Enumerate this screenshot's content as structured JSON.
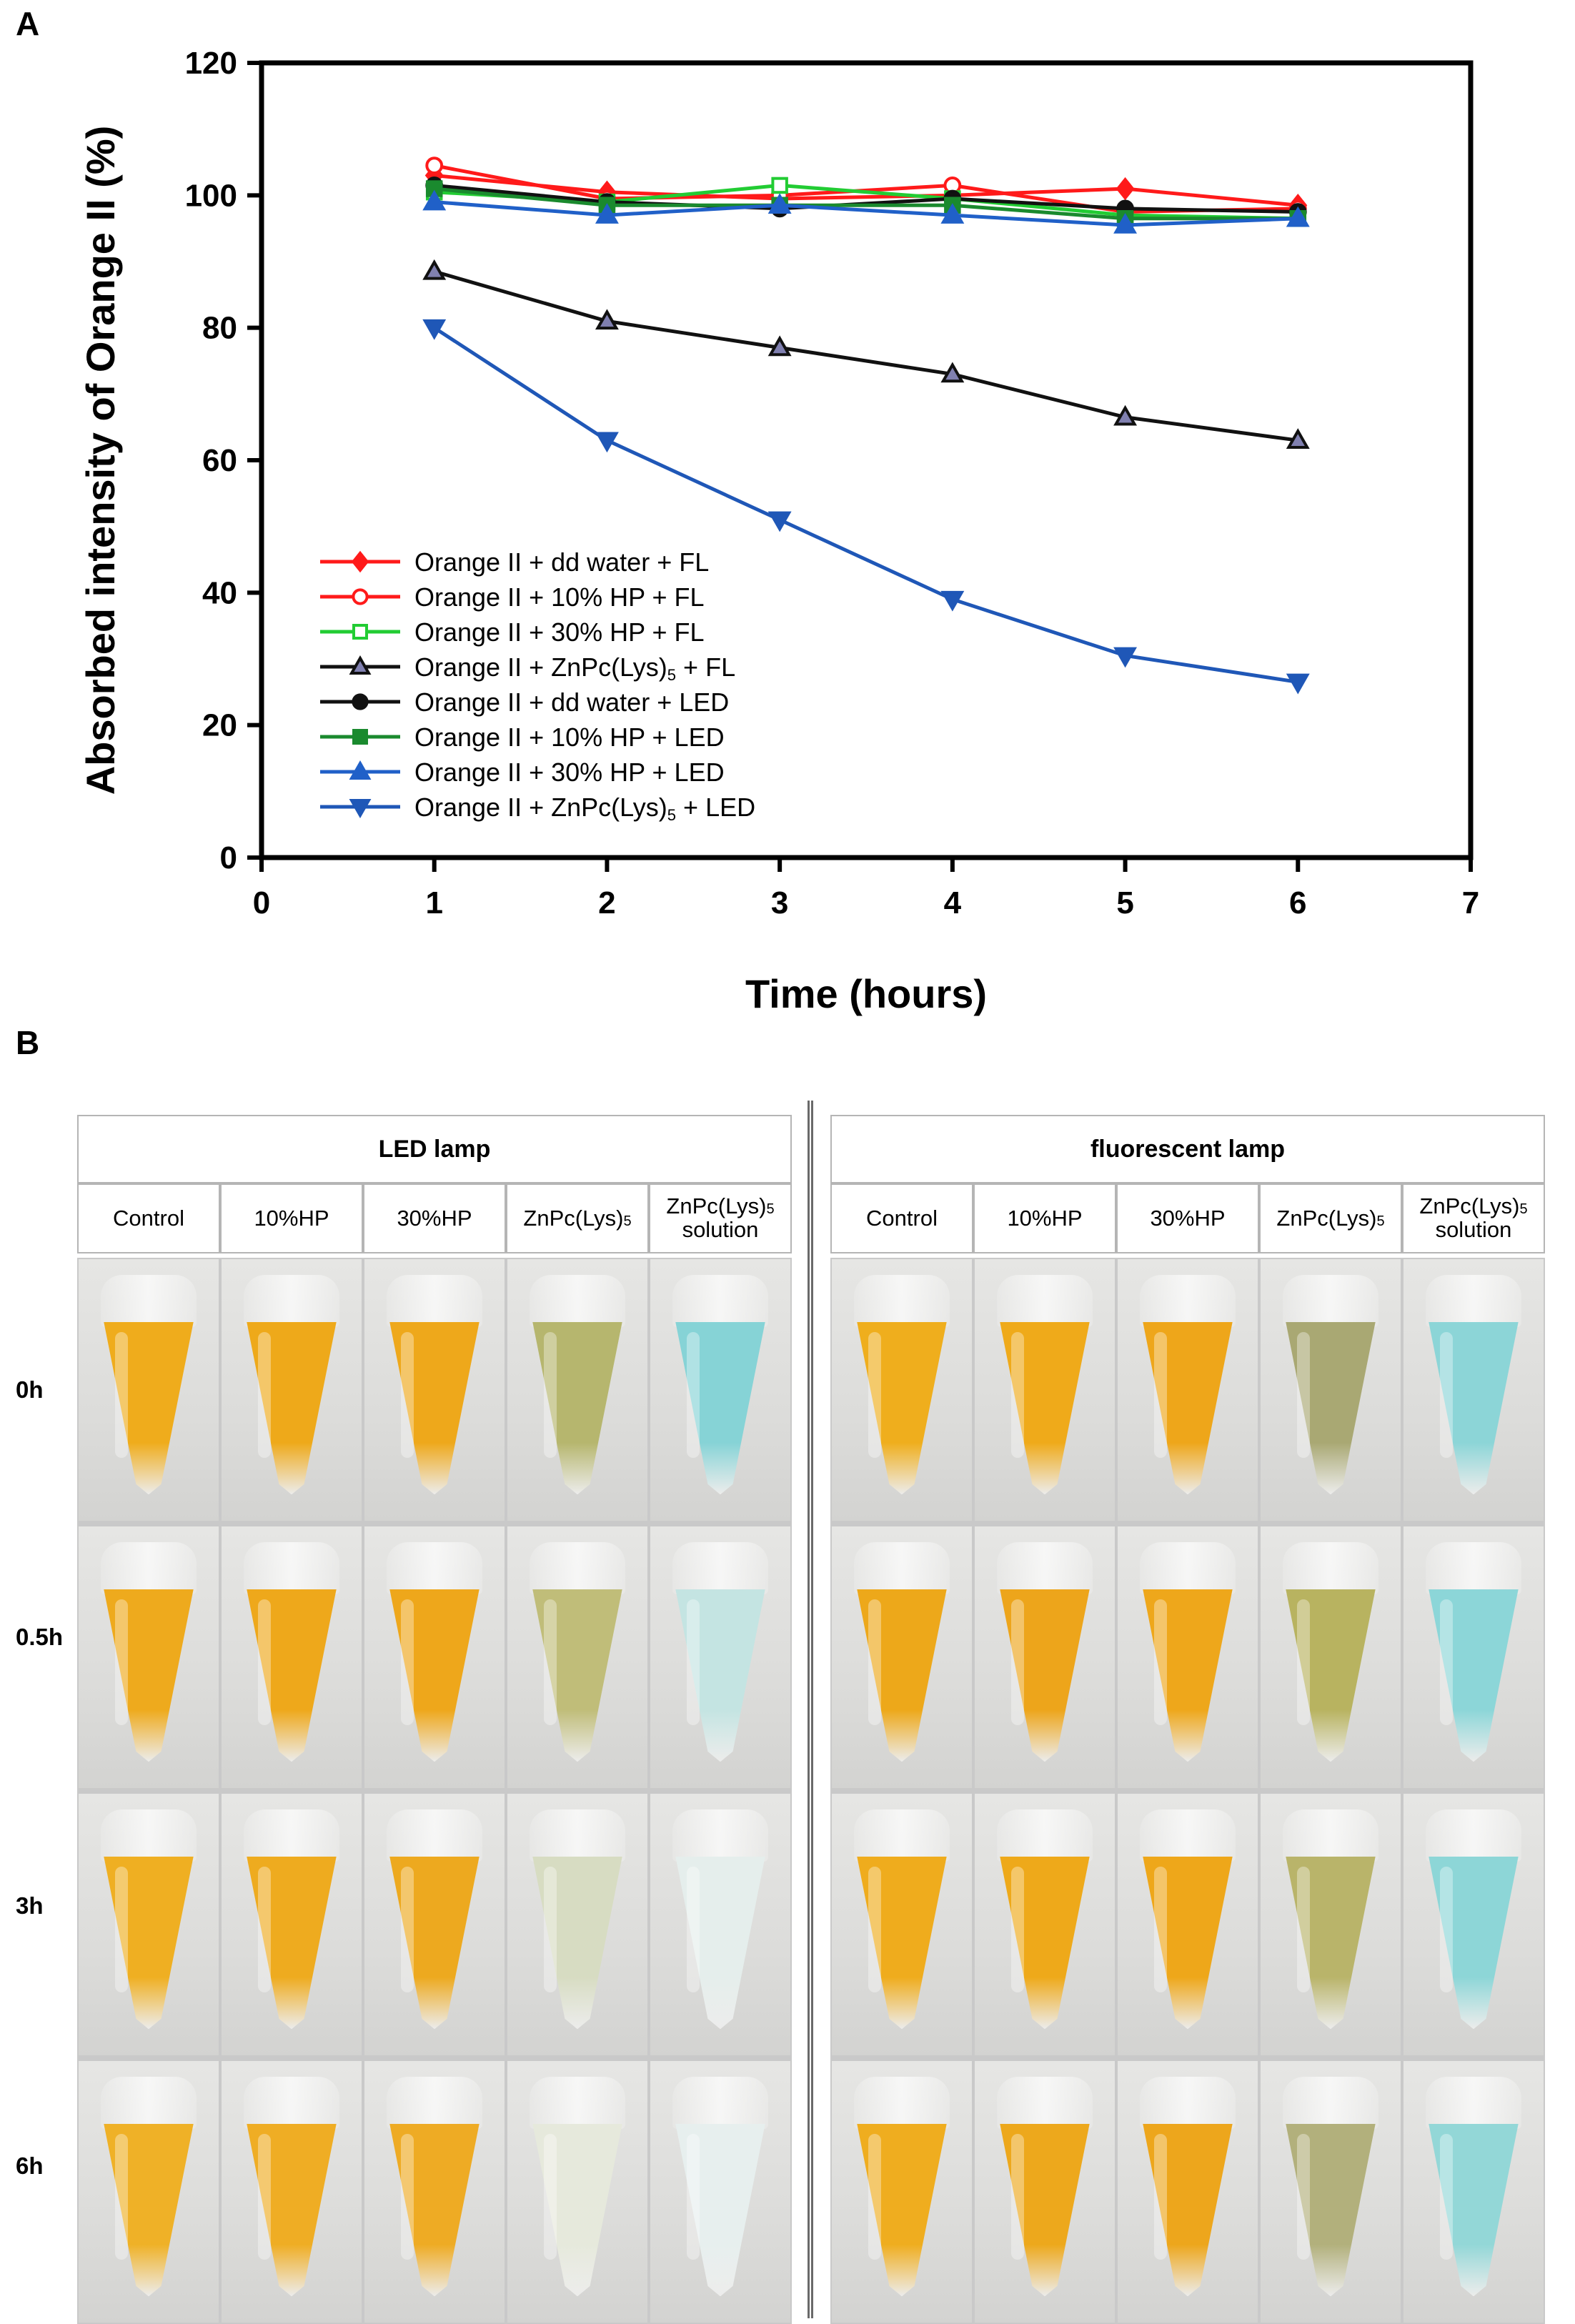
{
  "panel_a_label": "A",
  "panel_b_label": "B",
  "colors": {
    "red": "#ff1a1a",
    "green": "#22cc33",
    "black": "#111111",
    "dark_green": "#1a8a2e",
    "blue": "#2060c8",
    "navy_triangle": "#1f57b7",
    "triangle_fill": "#8080b0"
  },
  "chart_data": {
    "type": "line",
    "xlabel": "Time (hours)",
    "ylabel": "Absorbed intensity of Orange II (%)",
    "xlim": [
      0,
      7
    ],
    "ylim": [
      0,
      120
    ],
    "xticks": [
      0,
      1,
      2,
      3,
      4,
      5,
      6,
      7
    ],
    "yticks": [
      0,
      20,
      40,
      60,
      80,
      100,
      120
    ],
    "legend_position": "bottom-left",
    "x": [
      1,
      2,
      3,
      4,
      5,
      6
    ],
    "series": [
      {
        "name": "Orange II + dd water + FL",
        "color": "#ff1a1a",
        "marker": "diamond",
        "filled": true,
        "values": [
          103,
          100.5,
          99.5,
          100,
          101,
          98.5
        ]
      },
      {
        "name": "Orange II + 10% HP + FL",
        "color": "#ff1a1a",
        "marker": "circle",
        "filled": false,
        "values": [
          104.5,
          99.5,
          100,
          101.5,
          97.5,
          98
        ]
      },
      {
        "name": "Orange II + 30% HP + FL",
        "color": "#22cc33",
        "marker": "square",
        "filled": false,
        "values": [
          100.5,
          99,
          101.5,
          99.5,
          97,
          96.5
        ]
      },
      {
        "name": "Orange II + ZnPc(Lys)5 + FL",
        "color": "#111111",
        "marker": "triangle-up",
        "filled": true,
        "fill": "#8080b0",
        "values": [
          88.5,
          81,
          77,
          73,
          66.5,
          63
        ]
      },
      {
        "name": "Orange II + dd water + LED",
        "color": "#111111",
        "marker": "circle",
        "filled": true,
        "values": [
          101.5,
          99,
          98,
          99.5,
          98,
          97.5
        ]
      },
      {
        "name": "Orange II + 10% HP + LED",
        "color": "#1a8a2e",
        "marker": "square",
        "filled": true,
        "values": [
          101,
          98.5,
          98.5,
          98.5,
          96.5,
          96.5
        ]
      },
      {
        "name": "Orange II + 30% HP + LED",
        "color": "#2060c8",
        "marker": "triangle-up",
        "filled": true,
        "values": [
          99,
          97,
          98.5,
          97,
          95.5,
          96.5
        ]
      },
      {
        "name": "Orange II + ZnPc(Lys)5 + LED",
        "color": "#1f57b7",
        "marker": "triangle-down",
        "filled": true,
        "values": [
          80,
          63,
          51,
          39,
          30.5,
          26.5
        ]
      }
    ],
    "legend_parts": [
      [
        "Orange II + dd water + FL",
        ""
      ],
      [
        "Orange II + 10% HP + FL",
        ""
      ],
      [
        "Orange II + 30% HP + FL",
        ""
      ],
      [
        "Orange II + ZnPc(Lys)",
        "5",
        " + FL"
      ],
      [
        "Orange II + dd water + LED",
        ""
      ],
      [
        "Orange II + 10% HP + LED",
        ""
      ],
      [
        "Orange II + 30% HP + LED",
        ""
      ],
      [
        "Orange II + ZnPc(Lys)",
        "5",
        " + LED"
      ]
    ]
  },
  "panel_b": {
    "groups": [
      {
        "title": "LED lamp"
      },
      {
        "title": "fluorescent lamp"
      }
    ],
    "columns": [
      {
        "main": "Control",
        "sub": "",
        "second": ""
      },
      {
        "main": "10%HP",
        "sub": "",
        "second": ""
      },
      {
        "main": "30%HP",
        "sub": "",
        "second": ""
      },
      {
        "main": "ZnPc(Lys)",
        "sub": "5",
        "second": ""
      },
      {
        "main": "ZnPc(Lys)",
        "sub": "5",
        "second": "solution"
      }
    ],
    "rows": [
      "0h",
      "0.5h",
      "3h",
      "6h"
    ],
    "liquid_colors": {
      "LED lamp": [
        [
          "#efac1c",
          "#eea91a",
          "#eea81b",
          "#b6b66e",
          "#86d3d6"
        ],
        [
          "#eeaa1d",
          "#eea81b",
          "#eea71b",
          "#c0bd79",
          "#c4e4e2"
        ],
        [
          "#efaf22",
          "#eeab1f",
          "#eda91f",
          "#d7dcc2",
          "#e5eeec"
        ],
        [
          "#efb127",
          "#efad24",
          "#eeab24",
          "#e6e9dc",
          "#e7efee"
        ]
      ],
      "fluorescent lamp": [
        [
          "#efae1d",
          "#efaa1a",
          "#eea61a",
          "#a9a873",
          "#8cd5d7"
        ],
        [
          "#eda81a",
          "#eda51b",
          "#eea71b",
          "#b8b360",
          "#8cd6d8"
        ],
        [
          "#efac1d",
          "#eea91a",
          "#eea71a",
          "#b9b46a",
          "#8dd6d7"
        ],
        [
          "#efad1f",
          "#eda81c",
          "#eda61c",
          "#b2b07c",
          "#93d7d7"
        ]
      ]
    }
  }
}
